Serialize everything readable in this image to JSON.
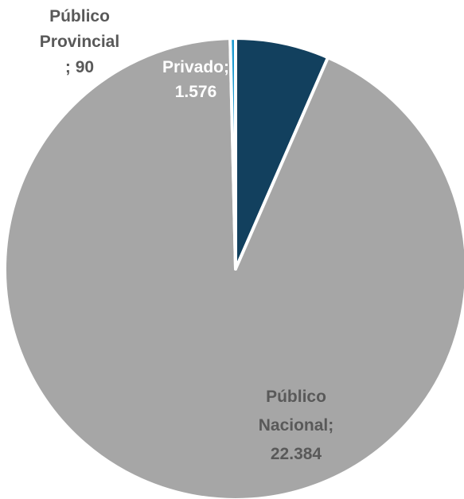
{
  "chart_data": {
    "type": "pie",
    "title": "",
    "slices": [
      {
        "name": "Privado",
        "value": 1576,
        "color": "#12405e",
        "label_color": "#ffffff",
        "label_lines": [
          "Privado;",
          "1.576"
        ]
      },
      {
        "name": "Público Nacional",
        "value": 22384,
        "color": "#a6a6a6",
        "label_color": "#595959",
        "label_lines": [
          "Público",
          "Nacional;",
          "22.384"
        ]
      },
      {
        "name": "Público Provincial",
        "value": 90,
        "color": "#1f9bd1",
        "label_color": "#595959",
        "label_lines": [
          "Público",
          "Provincial",
          "; 90"
        ]
      }
    ],
    "legend": "none",
    "start_angle": "12 o'clock, clockwise"
  }
}
